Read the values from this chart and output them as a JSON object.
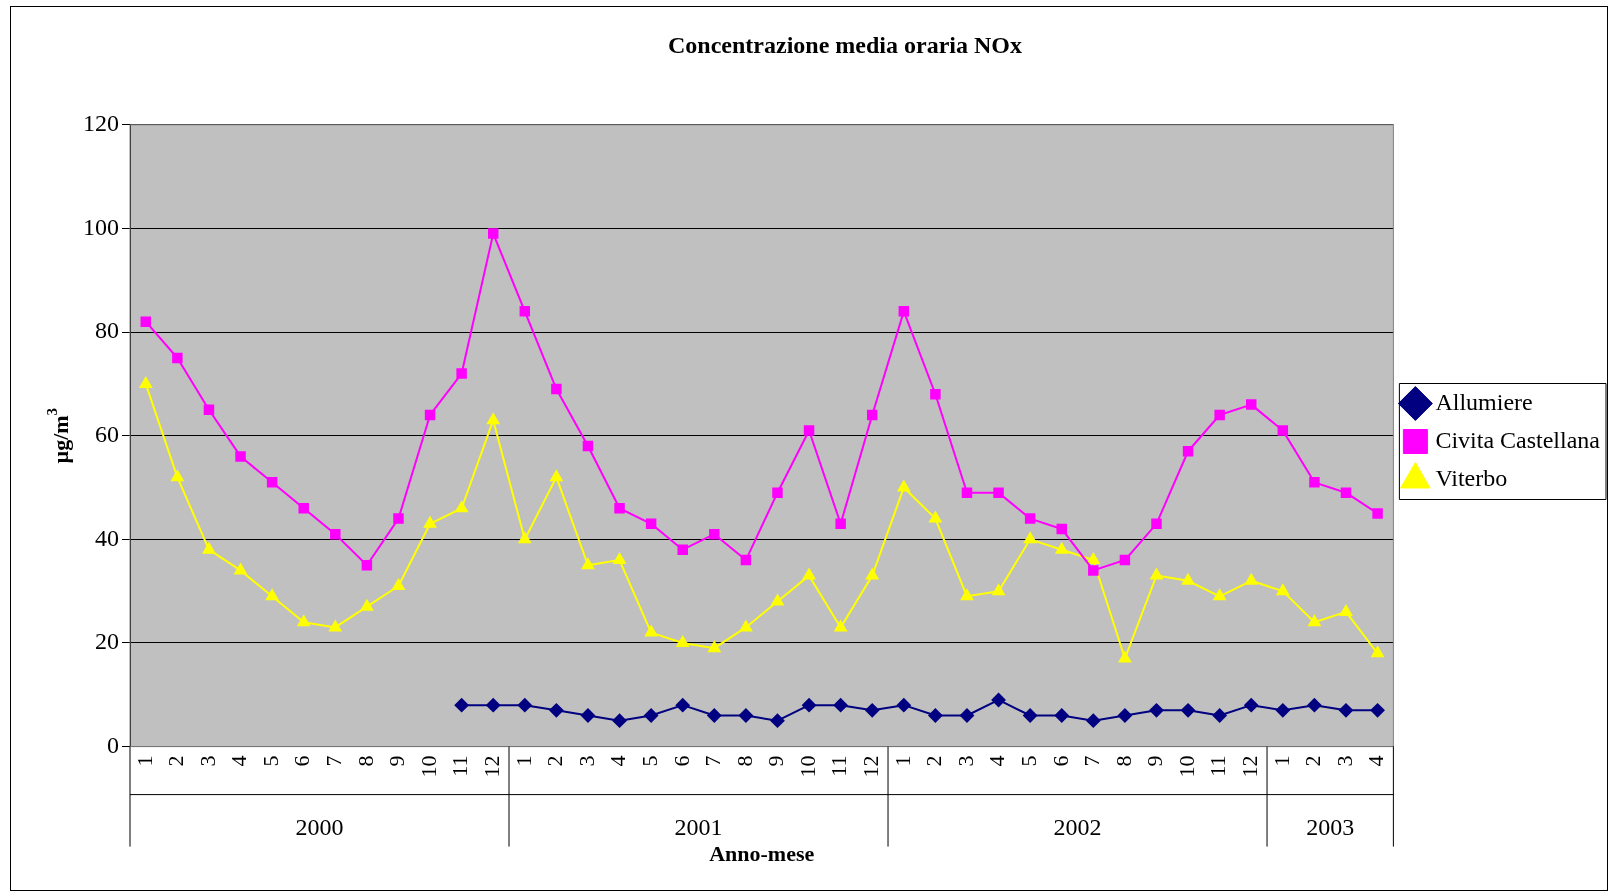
{
  "chart_data": {
    "type": "line",
    "title": "Concentrazione media oraria NOx",
    "xlabel": "Anno-mese",
    "ylabel": "µg/m$^{3}$",
    "categories": [
      "1",
      "2",
      "3",
      "4",
      "5",
      "6",
      "7",
      "8",
      "9",
      "10",
      "11",
      "12",
      "1",
      "2",
      "3",
      "4",
      "5",
      "6",
      "7",
      "8",
      "9",
      "10",
      "11",
      "12",
      "1",
      "2",
      "3",
      "4",
      "5",
      "6",
      "7",
      "8",
      "9",
      "10",
      "11",
      "12",
      "1",
      "2",
      "3",
      "4"
    ],
    "annotations": [
      "2000",
      "2001",
      "2002",
      "2003"
    ],
    "series": [
      {
        "name": "Allumiere",
        "color": "#000080",
        "marker": "diamond",
        "values": [
          null,
          null,
          null,
          null,
          null,
          null,
          null,
          null,
          null,
          null,
          8,
          8,
          8,
          7,
          6,
          5,
          6,
          8,
          6,
          6,
          5,
          8,
          8,
          7,
          8,
          6,
          6,
          9,
          6,
          6,
          5,
          6,
          7,
          7,
          6,
          8,
          7,
          8,
          7,
          7
        ]
      },
      {
        "name": "Civita Castellana",
        "color": "#ff00ff",
        "marker": "square",
        "values": [
          82,
          75,
          65,
          56,
          51,
          46,
          41,
          35,
          44,
          64,
          72,
          99,
          84,
          69,
          58,
          46,
          43,
          38,
          41,
          36,
          49,
          61,
          43,
          64,
          84,
          68,
          49,
          49,
          44,
          42,
          34,
          36,
          43,
          57,
          64,
          66,
          61,
          51,
          49,
          45
        ]
      },
      {
        "name": "Viterbo",
        "color": "#ffff00",
        "marker": "triangle",
        "values": [
          70,
          52,
          38,
          34,
          29,
          24,
          23,
          27,
          31,
          43,
          46,
          63,
          40,
          52,
          35,
          36,
          22,
          20,
          19,
          23,
          28,
          33,
          23,
          33,
          50,
          44,
          29,
          30,
          40,
          38,
          36,
          17,
          33,
          32,
          29,
          32,
          30,
          24,
          26,
          18
        ]
      }
    ],
    "ylim": [
      0,
      120
    ],
    "yticks": [
      0,
      20,
      40,
      60,
      80,
      100,
      120
    ],
    "grid": "y",
    "legend": "right",
    "line_style": "solid"
  }
}
